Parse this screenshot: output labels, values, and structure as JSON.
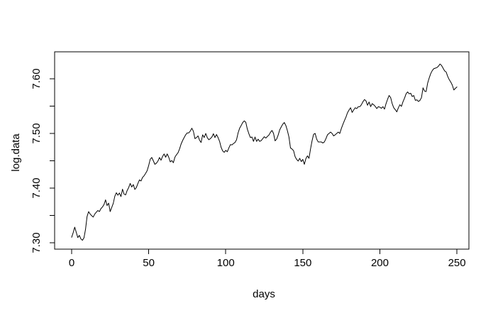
{
  "figure": {
    "background_color": "#ffffff",
    "line_color": "#000000",
    "text_color": "#000000"
  },
  "chart_data": {
    "type": "line",
    "title": "",
    "xlabel": "days",
    "ylabel": "log.data",
    "grid": false,
    "box_frame": true,
    "legend": "none",
    "xlim": [
      0,
      250
    ],
    "ylim": [
      7.3,
      7.6
    ],
    "x_ticks": [
      0,
      50,
      100,
      150,
      200,
      250
    ],
    "x_tick_labels": [
      "0",
      "50",
      "100",
      "150",
      "200",
      "250"
    ],
    "y_ticks": [
      7.3,
      7.35,
      7.4,
      7.45,
      7.5,
      7.55,
      7.6
    ],
    "y_labeled_ticks": [
      7.3,
      7.4,
      7.5,
      7.6
    ],
    "y_tick_labels": [
      "7.30",
      "7.40",
      "7.50",
      "7.60"
    ],
    "x_start": 0,
    "x_step": 1,
    "y": [
      7.31,
      7.3185,
      7.3285,
      7.319,
      7.3095,
      7.3135,
      7.307,
      7.3045,
      7.309,
      7.3245,
      7.348,
      7.357,
      7.3525,
      7.3495,
      7.347,
      7.3525,
      7.356,
      7.359,
      7.357,
      7.3625,
      7.3655,
      7.37,
      7.3785,
      7.368,
      7.3725,
      7.357,
      7.3645,
      7.372,
      7.385,
      7.3915,
      7.387,
      7.391,
      7.3845,
      7.398,
      7.389,
      7.3875,
      7.3955,
      7.401,
      7.4085,
      7.402,
      7.4065,
      7.3975,
      7.401,
      7.4085,
      7.415,
      7.413,
      7.4195,
      7.4225,
      7.427,
      7.432,
      7.4415,
      7.453,
      7.456,
      7.45,
      7.4435,
      7.4455,
      7.4495,
      7.456,
      7.451,
      7.458,
      7.4625,
      7.4565,
      7.4625,
      7.4565,
      7.448,
      7.4505,
      7.4465,
      7.4565,
      7.461,
      7.4645,
      7.4715,
      7.4805,
      7.487,
      7.4925,
      7.4975,
      7.501,
      7.501,
      7.5045,
      7.5095,
      7.504,
      7.4905,
      7.4925,
      7.4955,
      7.4875,
      7.4835,
      7.4975,
      7.4925,
      7.5,
      7.4925,
      7.4885,
      7.4905,
      7.4935,
      7.4995,
      7.4925,
      7.498,
      7.4925,
      7.4855,
      7.4745,
      7.468,
      7.4655,
      7.469,
      7.4665,
      7.4735,
      7.4795,
      7.479,
      7.4815,
      7.4835,
      7.4885,
      7.501,
      7.5095,
      7.5145,
      7.52,
      7.523,
      7.5205,
      7.508,
      7.4995,
      7.4925,
      7.4935,
      7.4855,
      7.4935,
      7.4855,
      7.4895,
      7.4855,
      7.487,
      7.4905,
      7.494,
      7.4915,
      7.4945,
      7.497,
      7.502,
      7.5055,
      7.5,
      7.4865,
      7.4895,
      7.497,
      7.5065,
      7.512,
      7.517,
      7.52,
      7.5145,
      7.505,
      7.4935,
      7.4735,
      7.4715,
      7.4685,
      7.4575,
      7.4525,
      7.4495,
      7.4545,
      7.4485,
      7.4525,
      7.4435,
      7.454,
      7.459,
      7.4545,
      7.4715,
      7.4865,
      7.4985,
      7.5,
      7.4895,
      7.4845,
      7.4845,
      7.4845,
      7.4825,
      7.4845,
      7.4905,
      7.4975,
      7.5,
      7.5025,
      7.5,
      7.4955,
      7.4975,
      7.5,
      7.5025,
      7.5,
      7.509,
      7.5165,
      7.5235,
      7.53,
      7.538,
      7.5429,
      7.547,
      7.5385,
      7.543,
      7.547,
      7.5455,
      7.549,
      7.549,
      7.5525,
      7.558,
      7.562,
      7.5595,
      7.5515,
      7.5575,
      7.549,
      7.5545,
      7.5525,
      7.5495,
      7.5455,
      7.549,
      7.548,
      7.546,
      7.549,
      7.5445,
      7.5545,
      7.5625,
      7.5695,
      7.5655,
      7.5545,
      7.547,
      7.5435,
      7.5395,
      7.547,
      7.5525,
      7.5495,
      7.558,
      7.5645,
      7.5725,
      7.576,
      7.5725,
      7.5735,
      7.5675,
      7.5695,
      7.5605,
      7.5615,
      7.5585,
      7.5605,
      7.5655,
      7.5835,
      7.5775,
      7.5765,
      7.592,
      7.6015,
      7.6095,
      7.615,
      7.6185,
      7.6195,
      7.6205,
      7.623,
      7.627,
      7.6245,
      7.6195,
      7.6145,
      7.6125,
      7.6045,
      7.5985,
      7.594,
      7.5885,
      7.5795,
      7.5825,
      7.585
    ]
  }
}
